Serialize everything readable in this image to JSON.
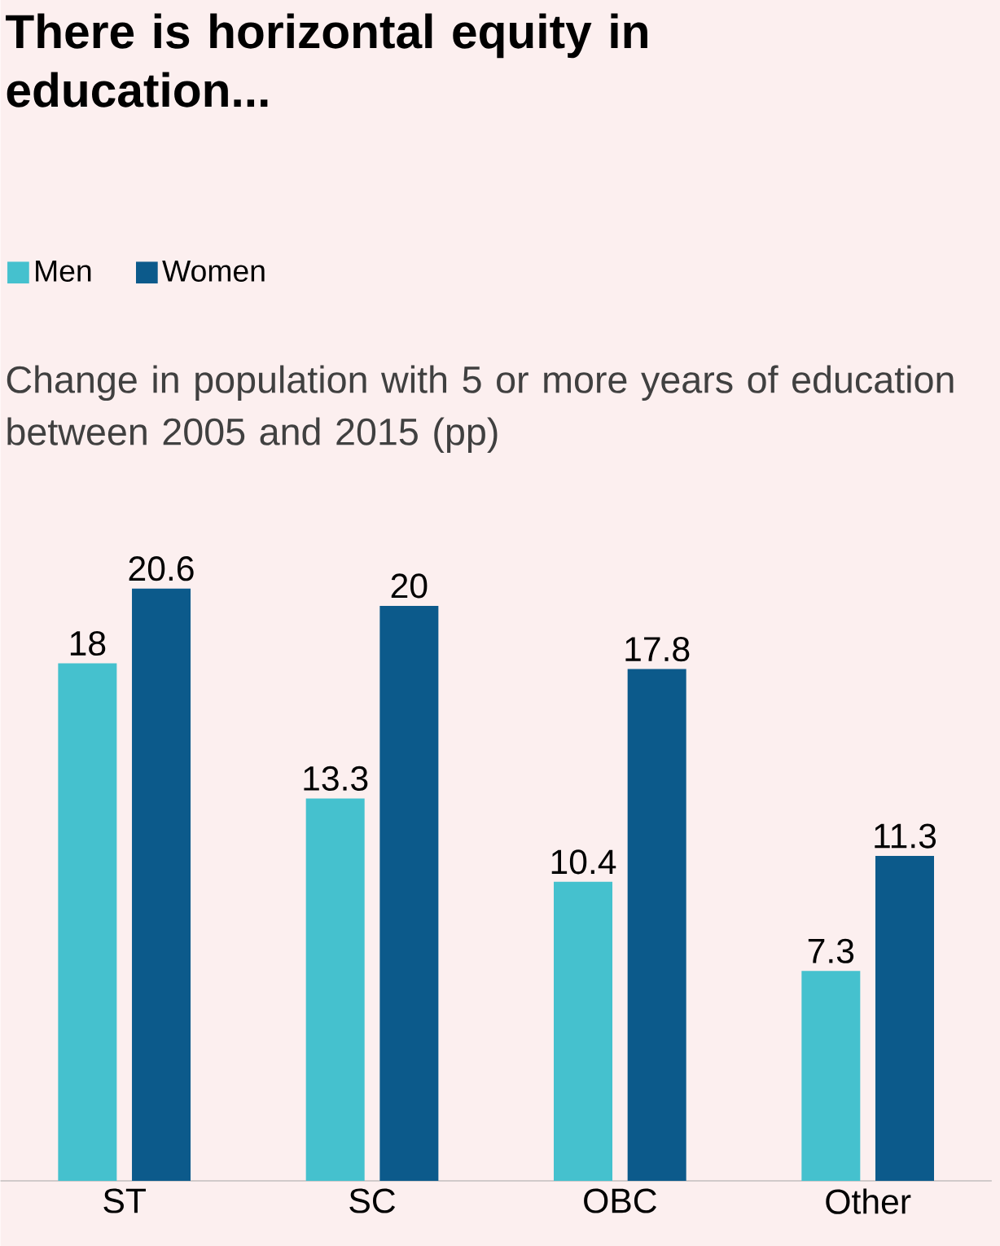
{
  "chart_data": {
    "type": "bar",
    "title": "There is horizontal equity in education...",
    "subtitle": "Change in population with 5 or more years of education between 2005 and 2015 (pp)",
    "categories": [
      "ST",
      "SC",
      "OBC",
      "Other"
    ],
    "series": [
      {
        "name": "Men",
        "color": "#45c1ce",
        "values": [
          18,
          13.3,
          10.4,
          7.3
        ]
      },
      {
        "name": "Women",
        "color": "#0c5a8b",
        "values": [
          20.6,
          20,
          17.8,
          11.3
        ]
      }
    ],
    "data_labels": true,
    "legend": "top left"
  }
}
